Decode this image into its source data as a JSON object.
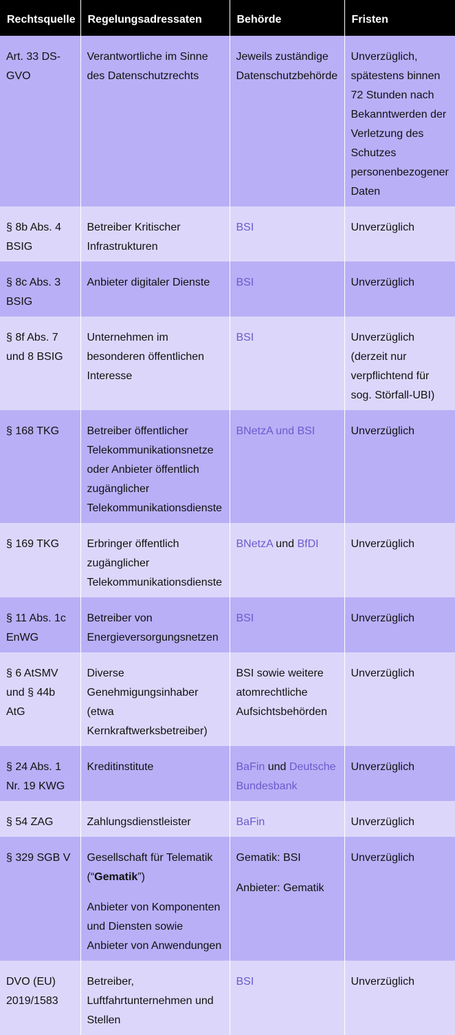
{
  "colors": {
    "header_bg": "#000000",
    "row_dark": "#b9aff6",
    "row_light": "#dcd7fa",
    "link": "#6a5acd"
  },
  "headers": [
    "Rechtsquelle",
    "Regelungsadressaten",
    "Behörde",
    "Fristen"
  ],
  "rows": [
    [
      [
        [
          {
            "t": "Art. 33 DS-GVO"
          }
        ]
      ],
      [
        [
          {
            "t": "Verantwortliche im Sinne des Datenschutzrechts"
          }
        ]
      ],
      [
        [
          {
            "t": "Jeweils zuständige Datenschutzbehörde"
          }
        ]
      ],
      [
        [
          {
            "t": "Unverzüglich, spätestens binnen 72 Stunden nach Bekanntwerden der Verletzung des Schutzes personenbezogener Daten"
          }
        ]
      ]
    ],
    [
      [
        [
          {
            "t": "§ 8b Abs. 4 BSIG"
          }
        ]
      ],
      [
        [
          {
            "t": "Betreiber Kritischer Infrastrukturen"
          }
        ]
      ],
      [
        [
          {
            "t": "BSI",
            "link": true
          }
        ]
      ],
      [
        [
          {
            "t": "Unverzüglich"
          }
        ]
      ]
    ],
    [
      [
        [
          {
            "t": "§ 8c Abs. 3 BSIG"
          }
        ]
      ],
      [
        [
          {
            "t": "Anbieter digitaler Dienste"
          }
        ]
      ],
      [
        [
          {
            "t": "BSI",
            "link": true
          }
        ]
      ],
      [
        [
          {
            "t": "Unverzüglich"
          }
        ]
      ]
    ],
    [
      [
        [
          {
            "t": "§ 8f Abs. 7 und 8 BSIG"
          }
        ]
      ],
      [
        [
          {
            "t": "Unternehmen im besonderen öffentlichen Interesse"
          }
        ]
      ],
      [
        [
          {
            "t": "BSI",
            "link": true
          }
        ]
      ],
      [
        [
          {
            "t": "Unverzüglich (derzeit nur verpflichtend für sog. Störfall-UBI)"
          }
        ]
      ]
    ],
    [
      [
        [
          {
            "t": "§ 168 TKG"
          }
        ]
      ],
      [
        [
          {
            "t": "Betreiber öffentlicher Telekommunikationsnetze oder Anbieter öffentlich zugänglicher Telekommunikationsdienste"
          }
        ]
      ],
      [
        [
          {
            "t": "BNetzA und BSI",
            "link": true
          }
        ]
      ],
      [
        [
          {
            "t": "Unverzüglich"
          }
        ]
      ]
    ],
    [
      [
        [
          {
            "t": "§ 169 TKG"
          }
        ]
      ],
      [
        [
          {
            "t": "Erbringer öffentlich zugänglicher Telekommunikationsdienste"
          }
        ]
      ],
      [
        [
          {
            "t": "BNetzA",
            "link": true
          },
          {
            "t": " und "
          },
          {
            "t": "BfDI",
            "link": true
          }
        ]
      ],
      [
        [
          {
            "t": "Unverzüglich"
          }
        ]
      ]
    ],
    [
      [
        [
          {
            "t": "§ 11 Abs. 1c EnWG"
          }
        ]
      ],
      [
        [
          {
            "t": "Betreiber von Energieversorgungsnetzen"
          }
        ]
      ],
      [
        [
          {
            "t": "BSI",
            "link": true
          }
        ]
      ],
      [
        [
          {
            "t": "Unverzüglich"
          }
        ]
      ]
    ],
    [
      [
        [
          {
            "t": "§ 6 AtSMV und § 44b AtG"
          }
        ]
      ],
      [
        [
          {
            "t": "Diverse Genehmigungsinhaber (etwa Kernkraftwerksbetreiber)"
          }
        ]
      ],
      [
        [
          {
            "t": "BSI sowie weitere atomrechtliche Aufsichtsbehörden"
          }
        ]
      ],
      [
        [
          {
            "t": "Unverzüglich"
          }
        ]
      ]
    ],
    [
      [
        [
          {
            "t": "§ 24 Abs. 1 Nr. 19 KWG"
          }
        ]
      ],
      [
        [
          {
            "t": "Kreditinstitute"
          }
        ]
      ],
      [
        [
          {
            "t": "BaFin",
            "link": true
          },
          {
            "t": " und "
          },
          {
            "t": "Deutsche Bundesbank",
            "link": true
          }
        ]
      ],
      [
        [
          {
            "t": "Unverzüglich"
          }
        ]
      ]
    ],
    [
      [
        [
          {
            "t": "§ 54 ZAG"
          }
        ]
      ],
      [
        [
          {
            "t": "Zahlungsdienstleister"
          }
        ]
      ],
      [
        [
          {
            "t": "BaFin",
            "link": true
          }
        ]
      ],
      [
        [
          {
            "t": "Unverzüglich"
          }
        ]
      ]
    ],
    [
      [
        [
          {
            "t": "§ 329 SGB V"
          }
        ]
      ],
      [
        [
          {
            "t": "Gesellschaft für Telematik (“"
          },
          {
            "t": "Gematik",
            "bold": true
          },
          {
            "t": "”)"
          }
        ],
        [
          {
            "t": "Anbieter von Komponenten und Diensten sowie Anbieter von Anwendungen"
          }
        ]
      ],
      [
        [
          {
            "t": "Gematik: BSI"
          }
        ],
        [
          {
            "t": "Anbieter: Gematik"
          }
        ]
      ],
      [
        [
          {
            "t": "Unverzüglich"
          }
        ]
      ]
    ],
    [
      [
        [
          {
            "t": "DVO (EU) 2019/1583"
          }
        ]
      ],
      [
        [
          {
            "t": "Betreiber, Luftfahrtunternehmen und Stellen"
          }
        ]
      ],
      [
        [
          {
            "t": "BSI",
            "link": true
          }
        ]
      ],
      [
        [
          {
            "t": "Unverzüglich"
          }
        ]
      ]
    ]
  ]
}
